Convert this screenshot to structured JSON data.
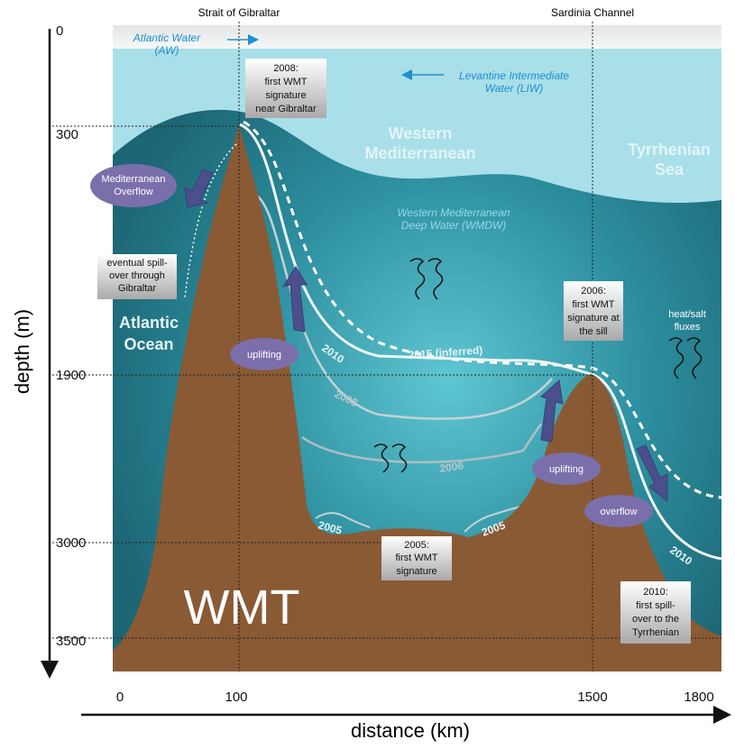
{
  "top_labels": [
    "Strait of Gibraltar",
    "Sardinia Channel"
  ],
  "water_labels": {
    "atlantic_water": [
      "Atlantic Water",
      "(AW)"
    ],
    "liw": [
      "Levantine Intermediate",
      "Water (LIW)"
    ],
    "western_med": [
      "Western",
      "Mediterranean"
    ],
    "tyrrhenian": [
      "Tyrrhenian",
      "Sea"
    ],
    "wmdw": [
      "Western Mediterranean",
      "Deep Water (WMDW)"
    ],
    "atlantic_ocean": [
      "Atlantic",
      "Ocean"
    ],
    "fluxes": [
      "heat/salt",
      "fluxes"
    ],
    "wmt": "WMT"
  },
  "boxes": [
    {
      "lines": [
        "2008:",
        "first WMT",
        "signature",
        "near Gibraltar"
      ]
    },
    {
      "lines": [
        "eventual spill-",
        "over through",
        "Gibraltar"
      ]
    },
    {
      "lines": [
        "2006:",
        "first WMT",
        "signature at",
        "the sill"
      ]
    },
    {
      "lines": [
        "2005:",
        "first WMT",
        "signature"
      ]
    },
    {
      "lines": [
        "2010:",
        "first spill-",
        "over to the",
        "Tyrrhenian"
      ]
    }
  ],
  "ellipses": [
    {
      "lines": [
        "Mediterranean",
        "Overflow"
      ]
    },
    {
      "lines": [
        "uplifting"
      ]
    },
    {
      "lines": [
        "uplifting"
      ]
    },
    {
      "lines": [
        "overflow"
      ]
    }
  ],
  "curve_labels": [
    "2015 (inferred)",
    "2010",
    "2008",
    "2006",
    "2005",
    "2005",
    "2010"
  ],
  "axes": {
    "y_label": "depth (m)",
    "y_ticks": [
      "0",
      "300",
      "1900",
      "3000",
      "3500"
    ],
    "x_label": "distance (km)",
    "x_ticks": [
      "0",
      "100",
      "1500",
      "1800"
    ]
  }
}
